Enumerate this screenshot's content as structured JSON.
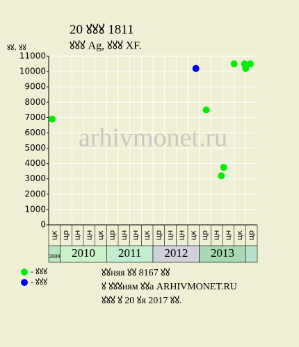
{
  "chart_data": {
    "type": "scatter",
    "title": "20 ꙋꙋꙋ 1811",
    "subtitle": "ꙋꙋꙋ Ag, ꙋꙋꙋ XF.",
    "y_label": "ꙋꙋ, ꙋꙋ",
    "watermark": "arhivmonet.ru",
    "categories": [
      "цк",
      "цр",
      "цн",
      "цн",
      "цк",
      "цр",
      "цн",
      "цн",
      "цк",
      "цр",
      "цн",
      "цн",
      "цк",
      "цр",
      "цн",
      "цн",
      "цк",
      "цр"
    ],
    "years": [
      {
        "label": "2009",
        "color": "#b8e4c4"
      },
      {
        "label": "2010",
        "color": "#ccf0c8"
      },
      {
        "label": "2011",
        "color": "#c4ecd0"
      },
      {
        "label": "2012",
        "color": "#d2d2dc"
      },
      {
        "label": "2013",
        "color": "#a8d8b4"
      }
    ],
    "xlim": [
      0,
      18
    ],
    "ylim": [
      0,
      11000
    ],
    "yticks": [
      0,
      1000,
      2000,
      3000,
      4000,
      5000,
      6000,
      7000,
      8000,
      9000,
      10000,
      11000
    ],
    "grid": true,
    "series": [
      {
        "name": "- ꙋꙋꙋ",
        "color": "#00ee00",
        "x": [
          0.3,
          13.6,
          14.9,
          15.1,
          16.0,
          16.9,
          17.0,
          17.4
        ],
        "values": [
          6900,
          7500,
          3200,
          3750,
          10500,
          10500,
          10200,
          10500
        ]
      },
      {
        "name": "- ꙋꙋꙋ",
        "color": "#0000ee",
        "x": [
          12.7
        ],
        "values": [
          10200
        ]
      }
    ],
    "notes": [
      "ꙋꙋняя ꙋꙋ 8167 ꙋꙋ",
      "ꙋ ꙋꙋꙋиям ꙋꙋа ARHIVMONET.RU",
      "ꙋꙋꙋ ꙋ 20 ꙋя 2017 ꙋꙋ."
    ]
  }
}
